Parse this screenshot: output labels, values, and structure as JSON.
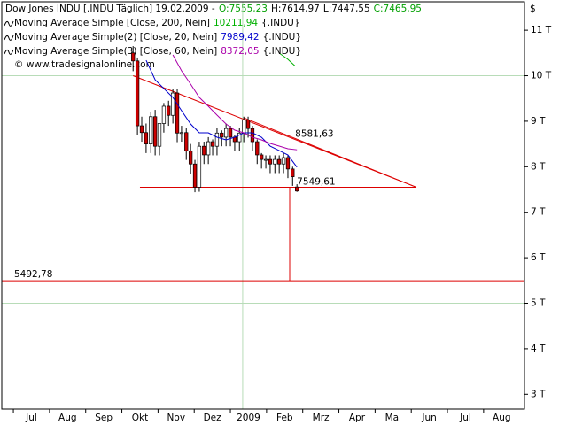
{
  "chart_data": {
    "type": "candlestick",
    "header": {
      "title": "Dow Jones INDU [.INDU  Täglich] 19.02.2009 -",
      "ohlc": [
        "O:7555,23",
        "H:7614,97",
        "L:7447,55",
        "C:7465,95"
      ],
      "ohlc_colors": [
        "#00a000",
        "#000000",
        "#000000",
        "#00a000"
      ]
    },
    "copyright": "© www.tradesignalonline.com",
    "currency": "$",
    "xlim": [
      -0.32,
      14.13
    ],
    "ylim": [
      2675,
      11625
    ],
    "xticks": [
      {
        "value": 0,
        "label": "Jul"
      },
      {
        "value": 1,
        "label": "Aug"
      },
      {
        "value": 2,
        "label": "Sep"
      },
      {
        "value": 3,
        "label": "Okt"
      },
      {
        "value": 4,
        "label": "Nov"
      },
      {
        "value": 5,
        "label": "Dez"
      },
      {
        "value": 6,
        "label": "2009"
      },
      {
        "value": 7,
        "label": "Feb"
      },
      {
        "value": 8,
        "label": "Mrz"
      },
      {
        "value": 9,
        "label": "Apr"
      },
      {
        "value": 10,
        "label": "Mai"
      },
      {
        "value": 11,
        "label": "Jun"
      },
      {
        "value": 12,
        "label": "Jul"
      },
      {
        "value": 13,
        "label": "Aug"
      }
    ],
    "yticks": [
      {
        "value": 11000,
        "label": "11 T"
      },
      {
        "value": 10000,
        "label": "10 T"
      },
      {
        "value": 9000,
        "label": "9 T"
      },
      {
        "value": 8000,
        "label": "8 T"
      },
      {
        "value": 7000,
        "label": "7 T"
      },
      {
        "value": 6000,
        "label": "6 T"
      },
      {
        "value": 5000,
        "label": "5 T"
      },
      {
        "value": 4000,
        "label": "4 T"
      },
      {
        "value": 3000,
        "label": "3 T"
      }
    ],
    "ygrid": [
      10000,
      5000
    ],
    "xgrid": [
      6.34
    ],
    "grid_color": "#b8dcb8",
    "up_color": "#ffffff",
    "down_color": "#cc0000",
    "x": [
      3.31,
      3.43,
      3.55,
      3.67,
      3.8,
      3.92,
      4.04,
      4.16,
      4.29,
      4.41,
      4.53,
      4.65,
      4.78,
      4.9,
      5.02,
      5.14,
      5.27,
      5.39,
      5.51,
      5.63,
      5.76,
      5.88,
      6.0,
      6.12,
      6.25,
      6.37,
      6.49,
      6.61,
      6.74,
      6.86,
      6.98,
      7.1,
      7.23,
      7.35,
      7.47,
      7.59,
      7.72,
      7.84
    ],
    "open": [
      10500,
      10325,
      8900,
      8750,
      8500,
      9100,
      8450,
      8950,
      9330,
      9130,
      9620,
      8740,
      8750,
      8350,
      8060,
      7550,
      8450,
      8260,
      8550,
      8450,
      8740,
      8650,
      8840,
      8650,
      8550,
      8740,
      9030,
      8840,
      8550,
      8260,
      8160,
      8160,
      8060,
      8160,
      8060,
      8200,
      7950,
      7555.23
    ],
    "high": [
      10650,
      10400,
      9100,
      8950,
      9200,
      9250,
      8950,
      9400,
      9450,
      9700,
      9700,
      8900,
      8850,
      8500,
      8150,
      8550,
      8550,
      8650,
      8600,
      8850,
      8800,
      8950,
      8900,
      8700,
      8850,
      9100,
      9100,
      8900,
      8600,
      8300,
      8250,
      8250,
      8250,
      8250,
      8300,
      8250,
      8000,
      7614.97
    ],
    "low": [
      10100,
      8700,
      8550,
      8300,
      8300,
      8250,
      8250,
      8750,
      8900,
      8950,
      8540,
      8550,
      8150,
      7850,
      7440,
      7450,
      8060,
      8060,
      8250,
      8250,
      8450,
      8450,
      8450,
      8350,
      8350,
      8540,
      8640,
      8350,
      8060,
      7960,
      7960,
      7860,
      7860,
      7860,
      7860,
      7750,
      7580,
      7447.55
    ],
    "close": [
      10325,
      8900,
      8750,
      8500,
      9100,
      8450,
      8950,
      9330,
      9130,
      9620,
      8740,
      8750,
      8350,
      8060,
      7550,
      8450,
      8260,
      8550,
      8450,
      8740,
      8650,
      8840,
      8650,
      8550,
      8740,
      9030,
      8840,
      8550,
      8260,
      8160,
      8160,
      8060,
      8160,
      8060,
      8200,
      7950,
      7780,
      7465.95
    ],
    "series": [
      {
        "name": "Moving Average Simple [Close, 200, Nein]",
        "value_label": "10211,94",
        "instrument": "{.INDU}",
        "color": "#00b000",
        "x": [
          7.35,
          7.59,
          7.79
        ],
        "values": [
          10496,
          10360,
          10211.94
        ]
      },
      {
        "name": "Moving Average Simple(2) [Close, 20, Nein]",
        "value_label": "7989,42",
        "instrument": "{.INDU}",
        "color": "#0000cc",
        "x": [
          3.67,
          3.92,
          4.16,
          4.41,
          4.65,
          4.9,
          5.14,
          5.39,
          5.63,
          5.88,
          6.12,
          6.37,
          6.61,
          6.86,
          7.1,
          7.35,
          7.59,
          7.84
        ],
        "values": [
          10340,
          9912,
          9718,
          9523,
          9232,
          8940,
          8745,
          8745,
          8648,
          8590,
          8648,
          8745,
          8745,
          8648,
          8453,
          8355,
          8258,
          7989.42
        ]
      },
      {
        "name": "Moving Average Simple(3) [Close, 60, Nein]",
        "value_label": "8372,05",
        "instrument": "{.INDU}",
        "color": "#aa00aa",
        "x": [
          4.41,
          4.65,
          4.9,
          5.14,
          5.39,
          5.63,
          5.88,
          6.12,
          6.37,
          6.61,
          6.86,
          7.1,
          7.35,
          7.59,
          7.84
        ],
        "values": [
          10457,
          10107,
          9815,
          9523,
          9329,
          9134,
          8940,
          8804,
          8745,
          8648,
          8590,
          8512,
          8453,
          8395,
          8372.05
        ]
      }
    ],
    "trendlines": [
      {
        "x": [
          3.31,
          11.14
        ],
        "y": [
          10000,
          7549.61
        ]
      },
      {
        "x": [
          6.37,
          11.14
        ],
        "y": [
          9075,
          7549.61
        ],
        "label": "8581,63",
        "label_value": 8581.63
      }
    ],
    "levels": [
      {
        "value": 7549.61,
        "label": "7549,61",
        "x": [
          3.5,
          11.14
        ]
      },
      {
        "value": 5492.78,
        "label": "5492,78",
        "x": [
          -0.32,
          14.13
        ]
      }
    ],
    "drop": {
      "x": 7.64,
      "y": [
        7549.61,
        5492.78
      ]
    },
    "annotation_color": "#dd0000"
  }
}
